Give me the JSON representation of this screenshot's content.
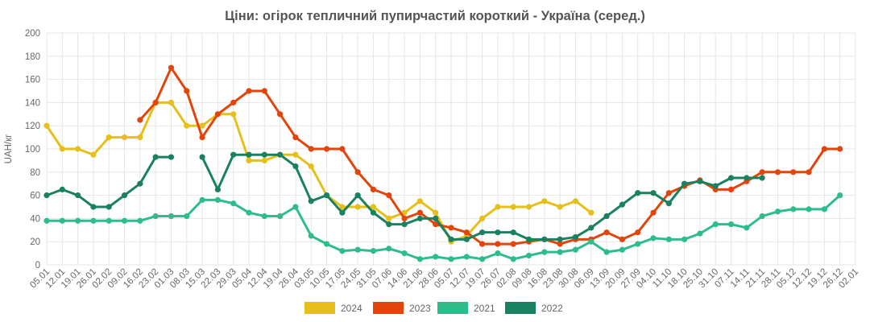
{
  "chart_data": {
    "type": "line",
    "title": "Ціни: огірок тепличний пупирчастий короткий - Україна (серед.)",
    "ylabel": "UAH/кг",
    "xlabel": "",
    "ylim": [
      0,
      200
    ],
    "yticks": [
      0,
      20,
      40,
      60,
      80,
      100,
      120,
      140,
      160,
      180,
      200
    ],
    "grid": true,
    "legend_position": "bottom",
    "categories": [
      "05.01",
      "12.01",
      "19.01",
      "26.01",
      "02.02",
      "09.02",
      "16.02",
      "23.02",
      "01.03",
      "08.03",
      "15.03",
      "22.03",
      "29.03",
      "05.04",
      "12.04",
      "19.04",
      "26.04",
      "03.05",
      "10.05",
      "17.05",
      "24.05",
      "31.05",
      "07.06",
      "14.06",
      "21.06",
      "28.06",
      "05.07",
      "12.07",
      "19.07",
      "26.07",
      "02.08",
      "09.08",
      "16.08",
      "23.08",
      "30.08",
      "06.09",
      "13.09",
      "20.09",
      "27.09",
      "04.10",
      "11.10",
      "18.10",
      "25.10",
      "31.10",
      "07.11",
      "14.11",
      "21.11",
      "28.11",
      "05.12",
      "12.12",
      "19.12",
      "26.12",
      "02.01"
    ],
    "series": [
      {
        "name": "2024",
        "color": "#e6c018",
        "values": [
          120,
          100,
          100,
          95,
          110,
          110,
          110,
          140,
          140,
          120,
          120,
          130,
          130,
          90,
          90,
          95,
          95,
          85,
          60,
          50,
          50,
          50,
          40,
          45,
          55,
          45,
          20,
          25,
          40,
          50,
          50,
          50,
          55,
          50,
          55,
          45,
          null,
          null,
          null,
          null,
          null,
          null,
          null,
          null,
          null,
          null,
          null,
          null,
          null,
          null,
          null,
          null,
          null
        ]
      },
      {
        "name": "2023",
        "color": "#e2440a",
        "values": [
          null,
          null,
          null,
          null,
          null,
          null,
          125,
          140,
          170,
          150,
          110,
          130,
          140,
          150,
          150,
          130,
          110,
          100,
          100,
          100,
          80,
          65,
          60,
          40,
          45,
          35,
          32,
          28,
          18,
          18,
          18,
          20,
          22,
          18,
          22,
          22,
          28,
          22,
          28,
          45,
          62,
          68,
          73,
          65,
          65,
          72,
          80,
          80,
          80,
          80,
          100,
          100,
          null
        ]
      },
      {
        "name": "2021",
        "color": "#2cbd8a",
        "values": [
          38,
          38,
          38,
          38,
          38,
          38,
          38,
          42,
          42,
          42,
          56,
          56,
          53,
          45,
          42,
          42,
          50,
          25,
          18,
          12,
          13,
          12,
          14,
          10,
          5,
          7,
          5,
          7,
          5,
          10,
          5,
          8,
          11,
          11,
          13,
          20,
          11,
          13,
          18,
          23,
          22,
          22,
          27,
          35,
          35,
          32,
          42,
          46,
          48,
          48,
          48,
          60,
          null
        ]
      },
      {
        "name": "2022",
        "color": "#198060",
        "values": [
          60,
          65,
          60,
          50,
          50,
          60,
          70,
          93,
          93,
          null,
          93,
          65,
          95,
          95,
          95,
          95,
          85,
          55,
          60,
          45,
          60,
          45,
          35,
          35,
          40,
          40,
          22,
          22,
          28,
          28,
          28,
          22,
          22,
          22,
          24,
          32,
          42,
          52,
          62,
          62,
          53,
          70,
          72,
          68,
          75,
          75,
          75,
          null,
          null,
          null,
          null,
          null,
          null
        ]
      }
    ]
  }
}
